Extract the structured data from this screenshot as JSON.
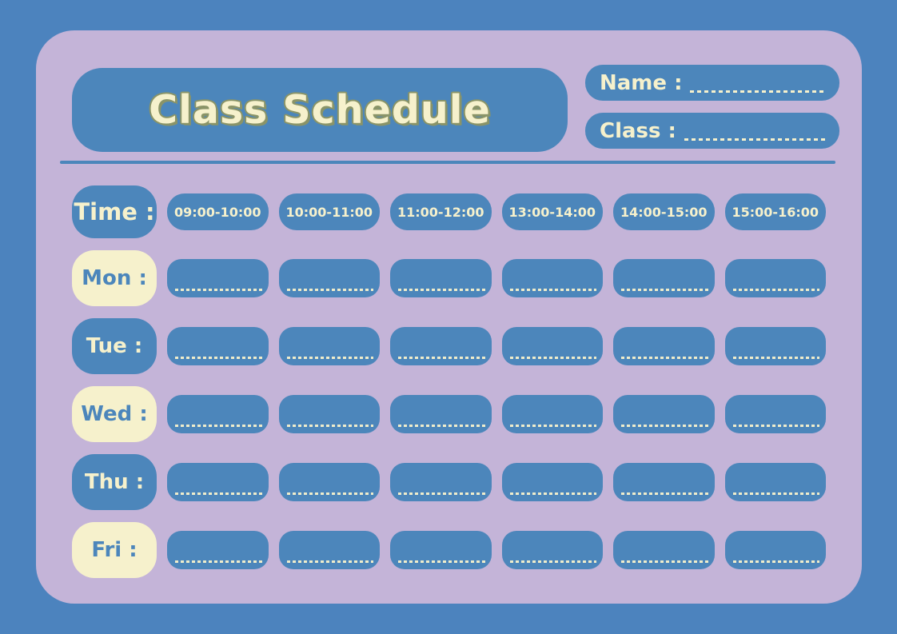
{
  "header": {
    "title": "Class Schedule",
    "name_label": "Name :",
    "class_label": "Class :"
  },
  "schedule": {
    "time_label": "Time :",
    "time_slots": [
      "09:00-10:00",
      "10:00-11:00",
      "11:00-12:00",
      "13:00-14:00",
      "14:00-15:00",
      "15:00-16:00"
    ],
    "days": [
      {
        "label": "Mon :"
      },
      {
        "label": "Tue :"
      },
      {
        "label": "Wed :"
      },
      {
        "label": "Thu :"
      },
      {
        "label": "Fri :"
      }
    ]
  },
  "colors": {
    "background_blue": "#4C83BE",
    "box_blue": "#4C86BB",
    "card_purple": "#C4B4D8",
    "cream": "#F6F1CC",
    "title_outline_olive": "#8A9468"
  }
}
